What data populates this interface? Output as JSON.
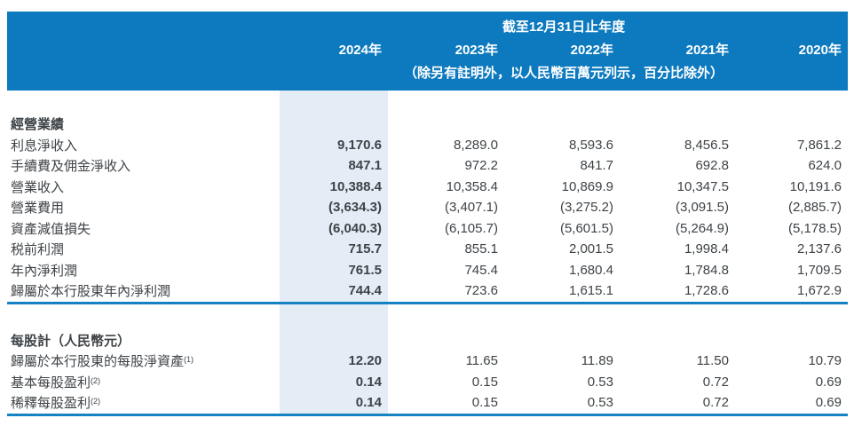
{
  "meta": {
    "colors": {
      "header_blue": "#0d7abf",
      "rule_blue": "#1583c3",
      "highlight_column": "#e4edf5",
      "text": "#3e4347"
    }
  },
  "header": {
    "title": "截至12月31日止年度",
    "years": [
      "2024年",
      "2023年",
      "2022年",
      "2021年",
      "2020年"
    ],
    "note": "（除另有註明外，以人民幣百萬元列示，百分比除外）"
  },
  "table": {
    "sections": [
      {
        "title": "經營業績",
        "rows": [
          {
            "label": "利息淨收入",
            "values": [
              "9,170.6",
              "8,289.0",
              "8,593.6",
              "8,456.5",
              "7,861.2"
            ]
          },
          {
            "label": "手續費及佣金淨收入",
            "values": [
              "847.1",
              "972.2",
              "841.7",
              "692.8",
              "624.0"
            ]
          },
          {
            "label": "營業收入",
            "values": [
              "10,388.4",
              "10,358.4",
              "10,869.9",
              "10,347.5",
              "10,191.6"
            ]
          },
          {
            "label": "營業費用",
            "values": [
              "(3,634.3)",
              "(3,407.1)",
              "(3,275.2)",
              "(3,091.5)",
              "(2,885.7)"
            ]
          },
          {
            "label": "資產減值損失",
            "values": [
              "(6,040.3)",
              "(6,105.7)",
              "(5,601.5)",
              "(5,264.9)",
              "(5,178.5)"
            ]
          },
          {
            "label": "税前利潤",
            "values": [
              "715.7",
              "855.1",
              "2,001.5",
              "1,998.4",
              "2,137.6"
            ]
          },
          {
            "label": "年內淨利潤",
            "values": [
              "761.5",
              "745.4",
              "1,680.4",
              "1,784.8",
              "1,709.5"
            ]
          },
          {
            "label": "歸屬於本行股東年內淨利潤",
            "values": [
              "744.4",
              "723.6",
              "1,615.1",
              "1,728.6",
              "1,672.9"
            ]
          }
        ]
      },
      {
        "title": "每股計（人民幣元）",
        "rows": [
          {
            "label": "歸屬於本行股東的每股淨資產",
            "sup": "(1)",
            "values": [
              "12.20",
              "11.65",
              "11.89",
              "11.50",
              "10.79"
            ]
          },
          {
            "label": "基本每股盈利",
            "sup": "(2)",
            "values": [
              "0.14",
              "0.15",
              "0.53",
              "0.72",
              "0.69"
            ]
          },
          {
            "label": "稀釋每股盈利",
            "sup": "(2)",
            "values": [
              "0.14",
              "0.15",
              "0.53",
              "0.72",
              "0.69"
            ]
          }
        ]
      }
    ]
  }
}
